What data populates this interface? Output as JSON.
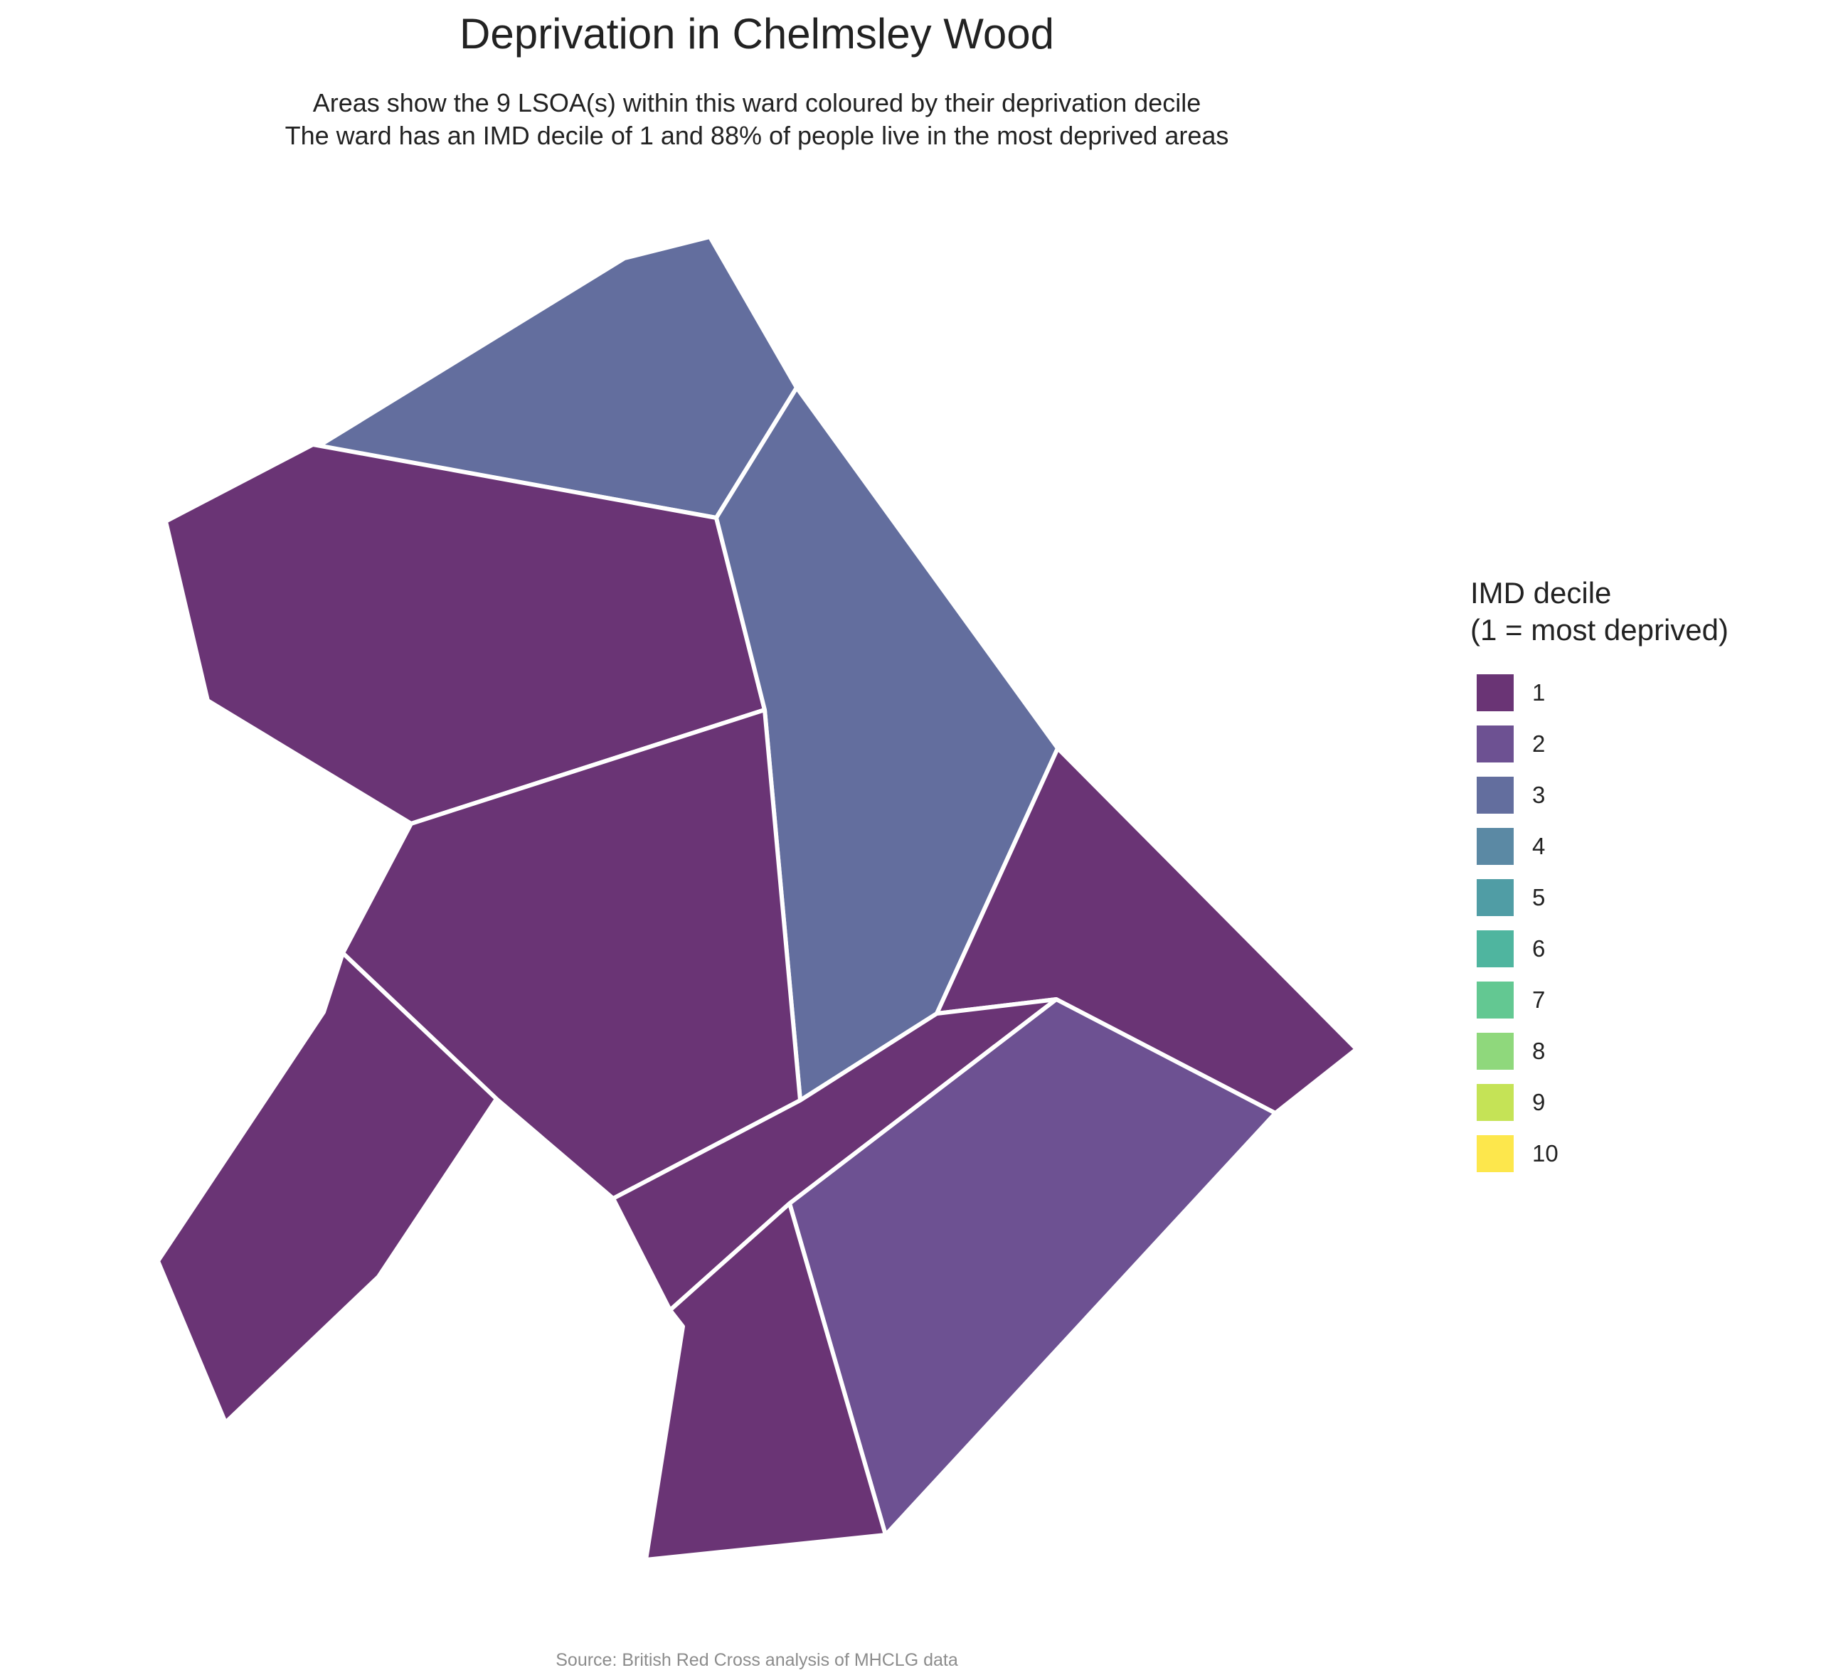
{
  "title": "Deprivation in Chelmsley Wood",
  "subtitle_line1": "Areas show the 9 LSOA(s) within this ward coloured by their deprivation decile",
  "subtitle_line2": "The ward has an IMD decile of 1 and 88% of people live in the most deprived areas",
  "legend": {
    "title_line1": "IMD decile",
    "title_line2": "(1 = most deprived)",
    "items": [
      {
        "label": "1",
        "color": "#6a3475"
      },
      {
        "label": "2",
        "color": "#6d5192"
      },
      {
        "label": "3",
        "color": "#636e9e"
      },
      {
        "label": "4",
        "color": "#5b89a4"
      },
      {
        "label": "5",
        "color": "#509da5"
      },
      {
        "label": "6",
        "color": "#4fb59f"
      },
      {
        "label": "7",
        "color": "#63c892"
      },
      {
        "label": "8",
        "color": "#8fd87c"
      },
      {
        "label": "9",
        "color": "#c5e356"
      },
      {
        "label": "10",
        "color": "#fde74c"
      }
    ]
  },
  "areas": [
    {
      "id": "lsoa-north",
      "decile": 3
    },
    {
      "id": "lsoa-northwest",
      "decile": 1
    },
    {
      "id": "lsoa-east-central",
      "decile": 3
    },
    {
      "id": "lsoa-central",
      "decile": 1
    },
    {
      "id": "lsoa-east",
      "decile": 1
    },
    {
      "id": "lsoa-southwest",
      "decile": 1
    },
    {
      "id": "lsoa-south-strip",
      "decile": 1
    },
    {
      "id": "lsoa-southeast",
      "decile": 2
    },
    {
      "id": "lsoa-south",
      "decile": 1
    }
  ],
  "caption": "Source: British Red Cross analysis of MHCLG data"
}
